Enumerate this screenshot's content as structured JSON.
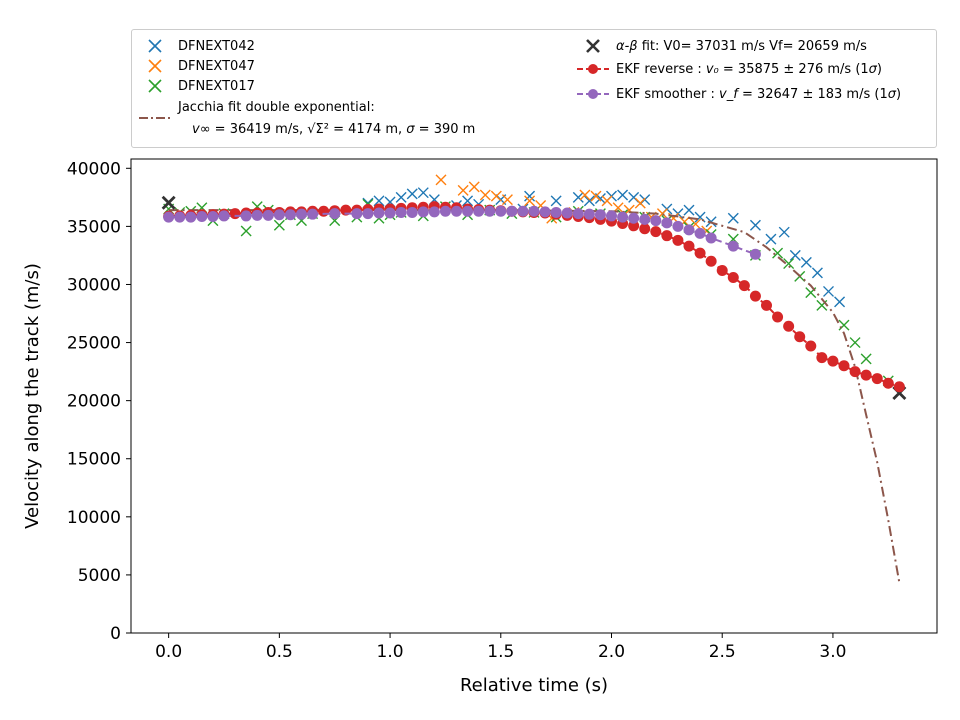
{
  "chart_data": {
    "type": "scatter",
    "title": "",
    "xlabel": "Relative time (s)",
    "ylabel": "Velocity along the track (m/s)",
    "xlim": [
      -0.17,
      3.47
    ],
    "ylim": [
      0,
      40800
    ],
    "xticks": [
      0.0,
      0.5,
      1.0,
      1.5,
      2.0,
      2.5,
      3.0
    ],
    "xtick_labels": [
      "0.0",
      "0.5",
      "1.0",
      "1.5",
      "2.0",
      "2.5",
      "3.0"
    ],
    "yticks": [
      0,
      5000,
      10000,
      15000,
      20000,
      25000,
      30000,
      35000,
      40000
    ],
    "ytick_labels": [
      "0",
      "5000",
      "10000",
      "15000",
      "20000",
      "25000",
      "30000",
      "35000",
      "40000"
    ],
    "legend_position": "above plot, two columns",
    "series": [
      {
        "name": "DFNEXT042",
        "marker": "x",
        "color": "#1f77b4",
        "x": [
          0.9,
          0.95,
          1.0,
          1.05,
          1.1,
          1.15,
          1.2,
          1.3,
          1.35,
          1.4,
          1.5,
          1.6,
          1.63,
          1.75,
          1.85,
          1.9,
          1.95,
          2.0,
          2.05,
          2.1,
          2.15,
          2.25,
          2.3,
          2.35,
          2.4,
          2.45,
          2.55,
          2.65,
          2.72,
          2.78,
          2.83,
          2.88,
          2.93,
          2.98,
          3.03
        ],
        "y": [
          37000,
          37200,
          37100,
          37500,
          37800,
          37900,
          37300,
          36800,
          37200,
          36900,
          37300,
          36500,
          37600,
          37200,
          37500,
          37200,
          37400,
          37600,
          37700,
          37500,
          37300,
          36500,
          36100,
          36400,
          35800,
          35400,
          35700,
          35100,
          33900,
          34500,
          32500,
          31900,
          31000,
          29400,
          28500
        ]
      },
      {
        "name": "DFNEXT047",
        "marker": "x",
        "color": "#ff7f0e",
        "x": [
          1.23,
          1.33,
          1.38,
          1.43,
          1.48,
          1.53,
          1.63,
          1.68,
          1.73,
          1.83,
          1.88,
          1.93,
          1.98,
          2.03,
          2.08,
          2.13,
          2.18,
          2.23,
          2.28,
          2.33,
          2.38,
          2.43
        ],
        "y": [
          39000,
          38100,
          38400,
          37700,
          37600,
          37300,
          37200,
          36800,
          35700,
          36200,
          37700,
          37600,
          37200,
          36600,
          36400,
          37000,
          35800,
          36100,
          35700,
          35400,
          35200,
          34600
        ]
      },
      {
        "name": "DFNEXT017",
        "marker": "x",
        "color": "#2ca02c",
        "x": [
          0.0,
          0.05,
          0.1,
          0.15,
          0.2,
          0.25,
          0.35,
          0.4,
          0.45,
          0.5,
          0.55,
          0.6,
          0.65,
          0.75,
          0.85,
          0.9,
          0.95,
          1.0,
          1.05,
          1.15,
          1.25,
          1.35,
          1.45,
          1.55,
          1.65,
          1.75,
          1.85,
          1.95,
          2.05,
          2.15,
          2.25,
          2.35,
          2.45,
          2.55,
          2.65,
          2.75,
          2.8,
          2.85,
          2.9,
          2.95,
          3.05,
          3.1,
          3.15,
          3.25
        ],
        "y": [
          36500,
          36200,
          36300,
          36600,
          35500,
          36100,
          34600,
          36700,
          36400,
          35100,
          36000,
          35500,
          36100,
          35500,
          35800,
          36900,
          35700,
          36000,
          36200,
          35900,
          36700,
          36000,
          36400,
          36100,
          36200,
          35800,
          36300,
          36100,
          36000,
          35800,
          35500,
          34900,
          34300,
          33900,
          32500,
          32700,
          31800,
          30700,
          29300,
          28200,
          26500,
          25000,
          23600,
          21700
        ]
      },
      {
        "name": "Jacchia fit double exponential:",
        "marker": "none",
        "line": "dashdot",
        "color": "#8c564b",
        "x": [
          0.0,
          0.5,
          1.0,
          1.5,
          2.0,
          2.2,
          2.4,
          2.6,
          2.7,
          2.8,
          2.9,
          3.0,
          3.05,
          3.1,
          3.15,
          3.2,
          3.25,
          3.3
        ],
        "y": [
          36400,
          36400,
          36400,
          36400,
          36300,
          36100,
          35600,
          34500,
          33200,
          31600,
          29900,
          27600,
          25800,
          22900,
          18800,
          14700,
          9700,
          4300
        ]
      },
      {
        "name": "α-β fit: V0= 37031 m/s   Vf= 20659 m/s",
        "marker": "X",
        "color": "#333333",
        "x": [
          0.0,
          3.3
        ],
        "y": [
          37031,
          20659
        ]
      },
      {
        "name": "EKF reverse",
        "marker": "o",
        "line": "dashed",
        "color": "#d62728",
        "x": [
          0.0,
          0.05,
          0.1,
          0.15,
          0.2,
          0.25,
          0.3,
          0.35,
          0.4,
          0.45,
          0.5,
          0.55,
          0.6,
          0.65,
          0.7,
          0.75,
          0.8,
          0.85,
          0.9,
          0.95,
          1.0,
          1.05,
          1.1,
          1.15,
          1.2,
          1.25,
          1.3,
          1.35,
          1.4,
          1.45,
          1.5,
          1.55,
          1.6,
          1.65,
          1.7,
          1.75,
          1.8,
          1.85,
          1.9,
          1.95,
          2.0,
          2.05,
          2.1,
          2.15,
          2.2,
          2.25,
          2.3,
          2.35,
          2.4,
          2.45,
          2.5,
          2.55,
          2.6,
          2.65,
          2.7,
          2.75,
          2.8,
          2.85,
          2.9,
          2.95,
          3.0,
          3.05,
          3.1,
          3.15,
          3.2,
          3.25,
          3.3
        ],
        "y": [
          35875,
          35900,
          35950,
          36000,
          36000,
          36050,
          36100,
          36150,
          36150,
          36200,
          36200,
          36250,
          36250,
          36300,
          36300,
          36350,
          36400,
          36400,
          36450,
          36500,
          36500,
          36550,
          36600,
          36650,
          36700,
          36650,
          36600,
          36500,
          36450,
          36400,
          36350,
          36300,
          36250,
          36200,
          36150,
          36050,
          35950,
          35850,
          35750,
          35600,
          35450,
          35250,
          35050,
          34800,
          34550,
          34200,
          33800,
          33300,
          32700,
          32000,
          31200,
          30600,
          29900,
          29000,
          28200,
          27200,
          26400,
          25500,
          24700,
          23700,
          23400,
          23000,
          22500,
          22200,
          21900,
          21500,
          21200
        ]
      },
      {
        "name": "EKF smoother",
        "marker": "o",
        "line": "dashed",
        "color": "#9467bd",
        "x": [
          0.0,
          0.05,
          0.1,
          0.15,
          0.2,
          0.25,
          0.35,
          0.4,
          0.45,
          0.5,
          0.55,
          0.6,
          0.65,
          0.75,
          0.85,
          0.9,
          0.95,
          1.0,
          1.05,
          1.1,
          1.15,
          1.2,
          1.25,
          1.3,
          1.35,
          1.4,
          1.45,
          1.5,
          1.55,
          1.6,
          1.65,
          1.7,
          1.75,
          1.8,
          1.85,
          1.9,
          1.95,
          2.0,
          2.05,
          2.1,
          2.15,
          2.2,
          2.25,
          2.3,
          2.35,
          2.4,
          2.45,
          2.55,
          2.65
        ],
        "y": [
          35800,
          35800,
          35800,
          35850,
          35850,
          35900,
          35900,
          35950,
          35950,
          36000,
          36000,
          36050,
          36050,
          36100,
          36100,
          36100,
          36150,
          36150,
          36200,
          36200,
          36250,
          36250,
          36300,
          36300,
          36300,
          36300,
          36300,
          36300,
          36300,
          36300,
          36300,
          36250,
          36200,
          36150,
          36100,
          36050,
          36000,
          35900,
          35800,
          35700,
          35600,
          35500,
          35300,
          35000,
          34700,
          34400,
          34000,
          33300,
          32600
        ]
      }
    ]
  },
  "legend": {
    "s042": "DFNEXT042",
    "s047": "DFNEXT047",
    "s017": "DFNEXT017",
    "jacchia_title": "Jacchia fit double exponential:",
    "jacchia_vinf_sym": "v∞",
    "jacchia_vinf_val": " = 36419 m/s, ",
    "jacchia_sigma_sym": "√Σ²",
    "jacchia_sigma_val": " = 4174 m, ",
    "jacchia_s_sym": "σ",
    "jacchia_s_val": " = 390 m",
    "ab_sym": "α-β",
    "ab_text": " fit: V0= 37031 m/s   Vf= 20659 m/s",
    "ekf_rev_pre": "EKF reverse : ",
    "ekf_rev_sym": "v₀",
    "ekf_rev_val": " =  35875 ± 276 m/s (1",
    "ekf_sm_pre": "EKF smoother : ",
    "ekf_sm_sym": "v_f",
    "ekf_sm_val": " =  32647 ± 183 m/s (1",
    "sigma_sym": "σ",
    "close_paren": ")"
  },
  "colors": {
    "c042": "#1f77b4",
    "c047": "#ff7f0e",
    "c017": "#2ca02c",
    "jacchia": "#8c564b",
    "ab": "#333333",
    "ekf_rev": "#d62728",
    "ekf_sm": "#9467bd"
  }
}
